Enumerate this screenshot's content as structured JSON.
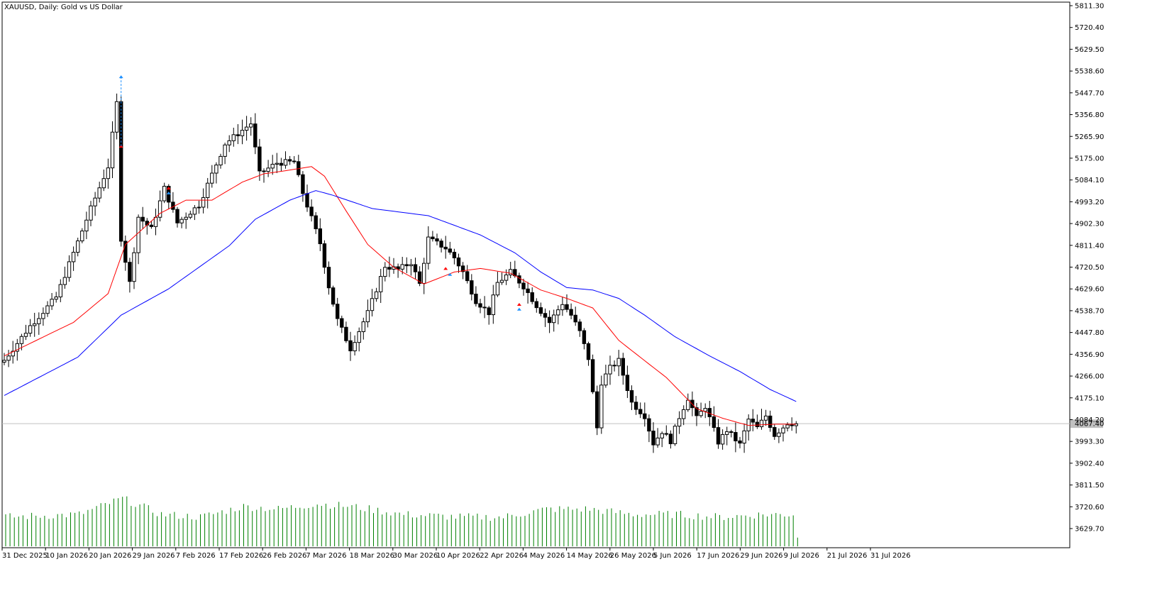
{
  "header": {
    "title": "XAUUSD, Daily:  Gold vs US Dollar"
  },
  "colors": {
    "background": "#ffffff",
    "candle_outline": "#000000",
    "bull_fill": "#ffffff",
    "bear_fill": "#000000",
    "ma_fast": "#ff0000",
    "ma_slow": "#0000ff",
    "volume": "#008000",
    "bid_line": "#c0c0c0",
    "price_label_bg": "#c0c0c0",
    "buy_arrow": "#1e90ff",
    "sell_arrow": "#ff0000"
  },
  "chart_data": {
    "type": "candlestick",
    "symbol": "XAUUSD",
    "timeframe": "Daily",
    "title": "XAUUSD, Daily:  Gold vs US Dollar",
    "y_axis": {
      "position": "right",
      "ylim": [
        3580,
        5830
      ],
      "ticks": [
        "5811.30",
        "5720.40",
        "5629.50",
        "5538.60",
        "5447.70",
        "5356.80",
        "5265.90",
        "5175.00",
        "5084.10",
        "4993.20",
        "4902.30",
        "4811.40",
        "4720.50",
        "4629.60",
        "4538.70",
        "4447.80",
        "4356.90",
        "4266.00",
        "4175.10",
        "4084.20",
        "3993.30",
        "3902.40",
        "3811.50",
        "3720.60",
        "3629.70"
      ]
    },
    "x_axis": {
      "ticks": [
        "31 Dec 2025",
        "10 Jan 2026",
        "20 Jan 2026",
        "29 Jan 2026",
        "7 Feb 2026",
        "17 Feb 2026",
        "26 Feb 2026",
        "7 Mar 2026",
        "18 Mar 2026",
        "30 Mar 2026",
        "10 Apr 2026",
        "22 Apr 2026",
        "4 May 2026",
        "14 May 2026",
        "26 May 2026",
        "5 Jun 2026",
        "17 Jun 2026",
        "29 Jun 2026",
        "9 Jul 2026",
        "21 Jul 2026",
        "31 Jul 2026"
      ]
    },
    "current_price": 4067.4,
    "current_price_label": "4067.40",
    "key_points": [
      {
        "index": 0,
        "close": 4332
      },
      {
        "index": 6,
        "close": 4475
      },
      {
        "index": 12,
        "close": 4595
      },
      {
        "index": 20,
        "close": 4965
      },
      {
        "index": 24,
        "close": 5140
      },
      {
        "index": 26,
        "close": 5405
      },
      {
        "index": 27,
        "close": 4840
      },
      {
        "index": 29,
        "close": 4655
      },
      {
        "index": 31,
        "close": 4930
      },
      {
        "index": 34,
        "close": 4880
      },
      {
        "index": 37,
        "close": 5050
      },
      {
        "index": 40,
        "close": 4905
      },
      {
        "index": 45,
        "close": 4980
      },
      {
        "index": 51,
        "close": 5235
      },
      {
        "index": 57,
        "close": 5320
      },
      {
        "index": 59,
        "close": 5110
      },
      {
        "index": 63,
        "close": 5155
      },
      {
        "index": 67,
        "close": 5160
      },
      {
        "index": 69,
        "close": 5030
      },
      {
        "index": 73,
        "close": 4820
      },
      {
        "index": 75,
        "close": 4640
      },
      {
        "index": 77,
        "close": 4500
      },
      {
        "index": 80,
        "close": 4380
      },
      {
        "index": 84,
        "close": 4530
      },
      {
        "index": 88,
        "close": 4725
      },
      {
        "index": 91,
        "close": 4710
      },
      {
        "index": 94,
        "close": 4740
      },
      {
        "index": 96,
        "close": 4650
      },
      {
        "index": 98,
        "close": 4840
      },
      {
        "index": 102,
        "close": 4800
      },
      {
        "index": 104,
        "close": 4760
      },
      {
        "index": 106,
        "close": 4700
      },
      {
        "index": 109,
        "close": 4580
      },
      {
        "index": 112,
        "close": 4530
      },
      {
        "index": 114,
        "close": 4655
      },
      {
        "index": 117,
        "close": 4700
      },
      {
        "index": 120,
        "close": 4640
      },
      {
        "index": 123,
        "close": 4560
      },
      {
        "index": 126,
        "close": 4490
      },
      {
        "index": 129,
        "close": 4570
      },
      {
        "index": 131,
        "close": 4520
      },
      {
        "index": 133,
        "close": 4450
      },
      {
        "index": 135,
        "close": 4340
      },
      {
        "index": 137,
        "close": 4050
      },
      {
        "index": 138,
        "close": 4240
      },
      {
        "index": 140,
        "close": 4300
      },
      {
        "index": 142,
        "close": 4330
      },
      {
        "index": 145,
        "close": 4155
      },
      {
        "index": 148,
        "close": 4100
      },
      {
        "index": 150,
        "close": 3985
      },
      {
        "index": 152,
        "close": 4035
      },
      {
        "index": 154,
        "close": 3995
      },
      {
        "index": 156,
        "close": 4095
      },
      {
        "index": 158,
        "close": 4175
      },
      {
        "index": 160,
        "close": 4090
      },
      {
        "index": 162,
        "close": 4140
      },
      {
        "index": 165,
        "close": 3990
      },
      {
        "index": 167,
        "close": 4040
      },
      {
        "index": 170,
        "close": 3980
      },
      {
        "index": 172,
        "close": 4085
      },
      {
        "index": 174,
        "close": 4050
      },
      {
        "index": 176,
        "close": 4100
      },
      {
        "index": 178,
        "close": 4020
      },
      {
        "index": 181,
        "close": 4070
      },
      {
        "index": 183,
        "close": 4067
      }
    ],
    "ma_fast_points": [
      {
        "index": 0,
        "value": 4350
      },
      {
        "index": 16,
        "value": 4490
      },
      {
        "index": 24,
        "value": 4610
      },
      {
        "index": 28,
        "value": 4815
      },
      {
        "index": 36,
        "value": 4945
      },
      {
        "index": 42,
        "value": 5000
      },
      {
        "index": 48,
        "value": 5000
      },
      {
        "index": 55,
        "value": 5075
      },
      {
        "index": 60,
        "value": 5110
      },
      {
        "index": 64,
        "value": 5120
      },
      {
        "index": 71,
        "value": 5140
      },
      {
        "index": 74,
        "value": 5100
      },
      {
        "index": 79,
        "value": 4955
      },
      {
        "index": 84,
        "value": 4815
      },
      {
        "index": 90,
        "value": 4720
      },
      {
        "index": 97,
        "value": 4650
      },
      {
        "index": 104,
        "value": 4700
      },
      {
        "index": 110,
        "value": 4715
      },
      {
        "index": 117,
        "value": 4695
      },
      {
        "index": 124,
        "value": 4625
      },
      {
        "index": 130,
        "value": 4590
      },
      {
        "index": 136,
        "value": 4550
      },
      {
        "index": 142,
        "value": 4415
      },
      {
        "index": 148,
        "value": 4330
      },
      {
        "index": 153,
        "value": 4260
      },
      {
        "index": 160,
        "value": 4130
      },
      {
        "index": 166,
        "value": 4090
      },
      {
        "index": 172,
        "value": 4060
      },
      {
        "index": 178,
        "value": 4065
      },
      {
        "index": 183,
        "value": 4065
      }
    ],
    "ma_slow_points": [
      {
        "index": 0,
        "value": 4185
      },
      {
        "index": 17,
        "value": 4345
      },
      {
        "index": 27,
        "value": 4520
      },
      {
        "index": 38,
        "value": 4630
      },
      {
        "index": 52,
        "value": 4810
      },
      {
        "index": 58,
        "value": 4920
      },
      {
        "index": 66,
        "value": 5000
      },
      {
        "index": 72,
        "value": 5040
      },
      {
        "index": 76,
        "value": 5020
      },
      {
        "index": 85,
        "value": 4965
      },
      {
        "index": 98,
        "value": 4935
      },
      {
        "index": 110,
        "value": 4855
      },
      {
        "index": 118,
        "value": 4780
      },
      {
        "index": 124,
        "value": 4700
      },
      {
        "index": 130,
        "value": 4635
      },
      {
        "index": 136,
        "value": 4625
      },
      {
        "index": 142,
        "value": 4590
      },
      {
        "index": 148,
        "value": 4520
      },
      {
        "index": 155,
        "value": 4430
      },
      {
        "index": 163,
        "value": 4350
      },
      {
        "index": 170,
        "value": 4285
      },
      {
        "index": 177,
        "value": 4210
      },
      {
        "index": 183,
        "value": 4160
      }
    ],
    "volume_profile": [
      {
        "index": 0,
        "level": 0.55
      },
      {
        "index": 17,
        "level": 0.6
      },
      {
        "index": 27,
        "level": 0.9
      },
      {
        "index": 36,
        "level": 0.6
      },
      {
        "index": 45,
        "level": 0.55
      },
      {
        "index": 55,
        "level": 0.75
      },
      {
        "index": 63,
        "level": 0.7
      },
      {
        "index": 72,
        "level": 0.8
      },
      {
        "index": 80,
        "level": 0.75
      },
      {
        "index": 92,
        "level": 0.6
      },
      {
        "index": 105,
        "level": 0.55
      },
      {
        "index": 115,
        "level": 0.55
      },
      {
        "index": 125,
        "level": 0.7
      },
      {
        "index": 135,
        "level": 0.7
      },
      {
        "index": 145,
        "level": 0.6
      },
      {
        "index": 155,
        "level": 0.6
      },
      {
        "index": 165,
        "level": 0.55
      },
      {
        "index": 175,
        "level": 0.6
      },
      {
        "index": 182,
        "level": 0.6
      },
      {
        "index": 183,
        "level": 0.2
      }
    ],
    "trade_markers": [
      {
        "index": 27,
        "price": 5515,
        "kind": "buy"
      },
      {
        "index": 27,
        "price": 5225,
        "kind": "sell"
      },
      {
        "index": 38,
        "price": 5050,
        "kind": "sell"
      },
      {
        "index": 38,
        "price": 5030,
        "kind": "buy"
      },
      {
        "index": 102,
        "price": 4715,
        "kind": "sell"
      },
      {
        "index": 103,
        "price": 4690,
        "kind": "buy"
      },
      {
        "index": 119,
        "price": 4565,
        "kind": "sell"
      },
      {
        "index": 119,
        "price": 4545,
        "kind": "buy"
      }
    ]
  }
}
